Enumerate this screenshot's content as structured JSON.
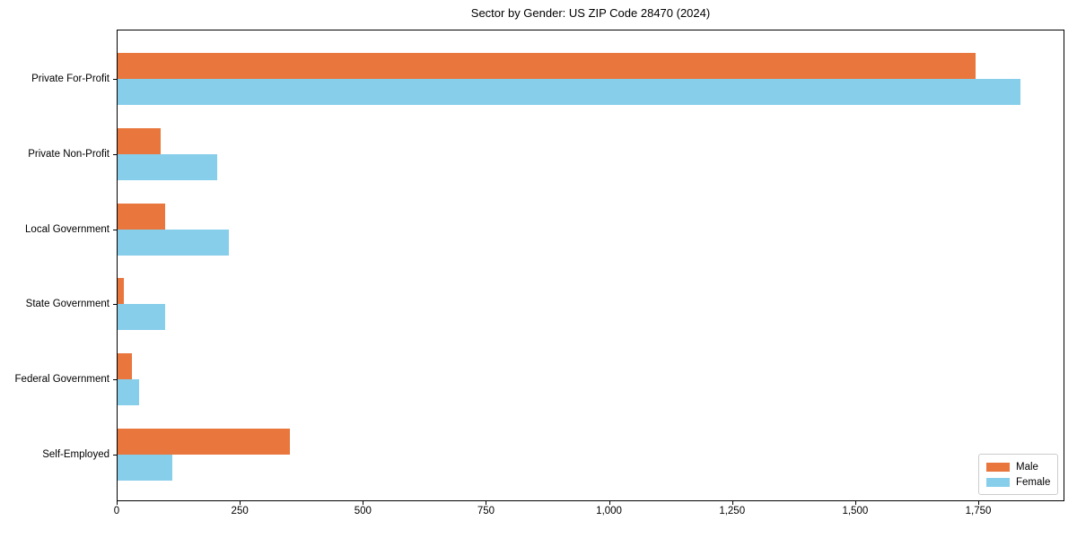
{
  "chart_data": {
    "type": "bar",
    "orientation": "horizontal",
    "title": "Sector by Gender: US ZIP Code 28470 (2024)",
    "categories": [
      "Private For-Profit",
      "Private Non-Profit",
      "Local Government",
      "State Government",
      "Federal Government",
      "Self-Employed"
    ],
    "series": [
      {
        "name": "Male",
        "color": "#e8763d",
        "values": [
          1743,
          88,
          97,
          13,
          29,
          350
        ]
      },
      {
        "name": "Female",
        "color": "#87ceeb",
        "values": [
          1833,
          203,
          226,
          97,
          44,
          111
        ]
      }
    ],
    "xlabel": "",
    "ylabel": "",
    "xlim": [
      0,
      1925
    ],
    "x_tick_values": [
      0,
      250,
      500,
      750,
      1000,
      1250,
      1500,
      1750
    ],
    "x_tick_labels": [
      "0",
      "250",
      "500",
      "750",
      "1,000",
      "1,250",
      "1,500",
      "1,750"
    ],
    "grid": false,
    "legend_position": "lower right"
  },
  "colors": {
    "male": "#e8763d",
    "female": "#87ceeb",
    "spine": "#000000",
    "legend_border": "#cccccc",
    "background": "#ffffff"
  }
}
